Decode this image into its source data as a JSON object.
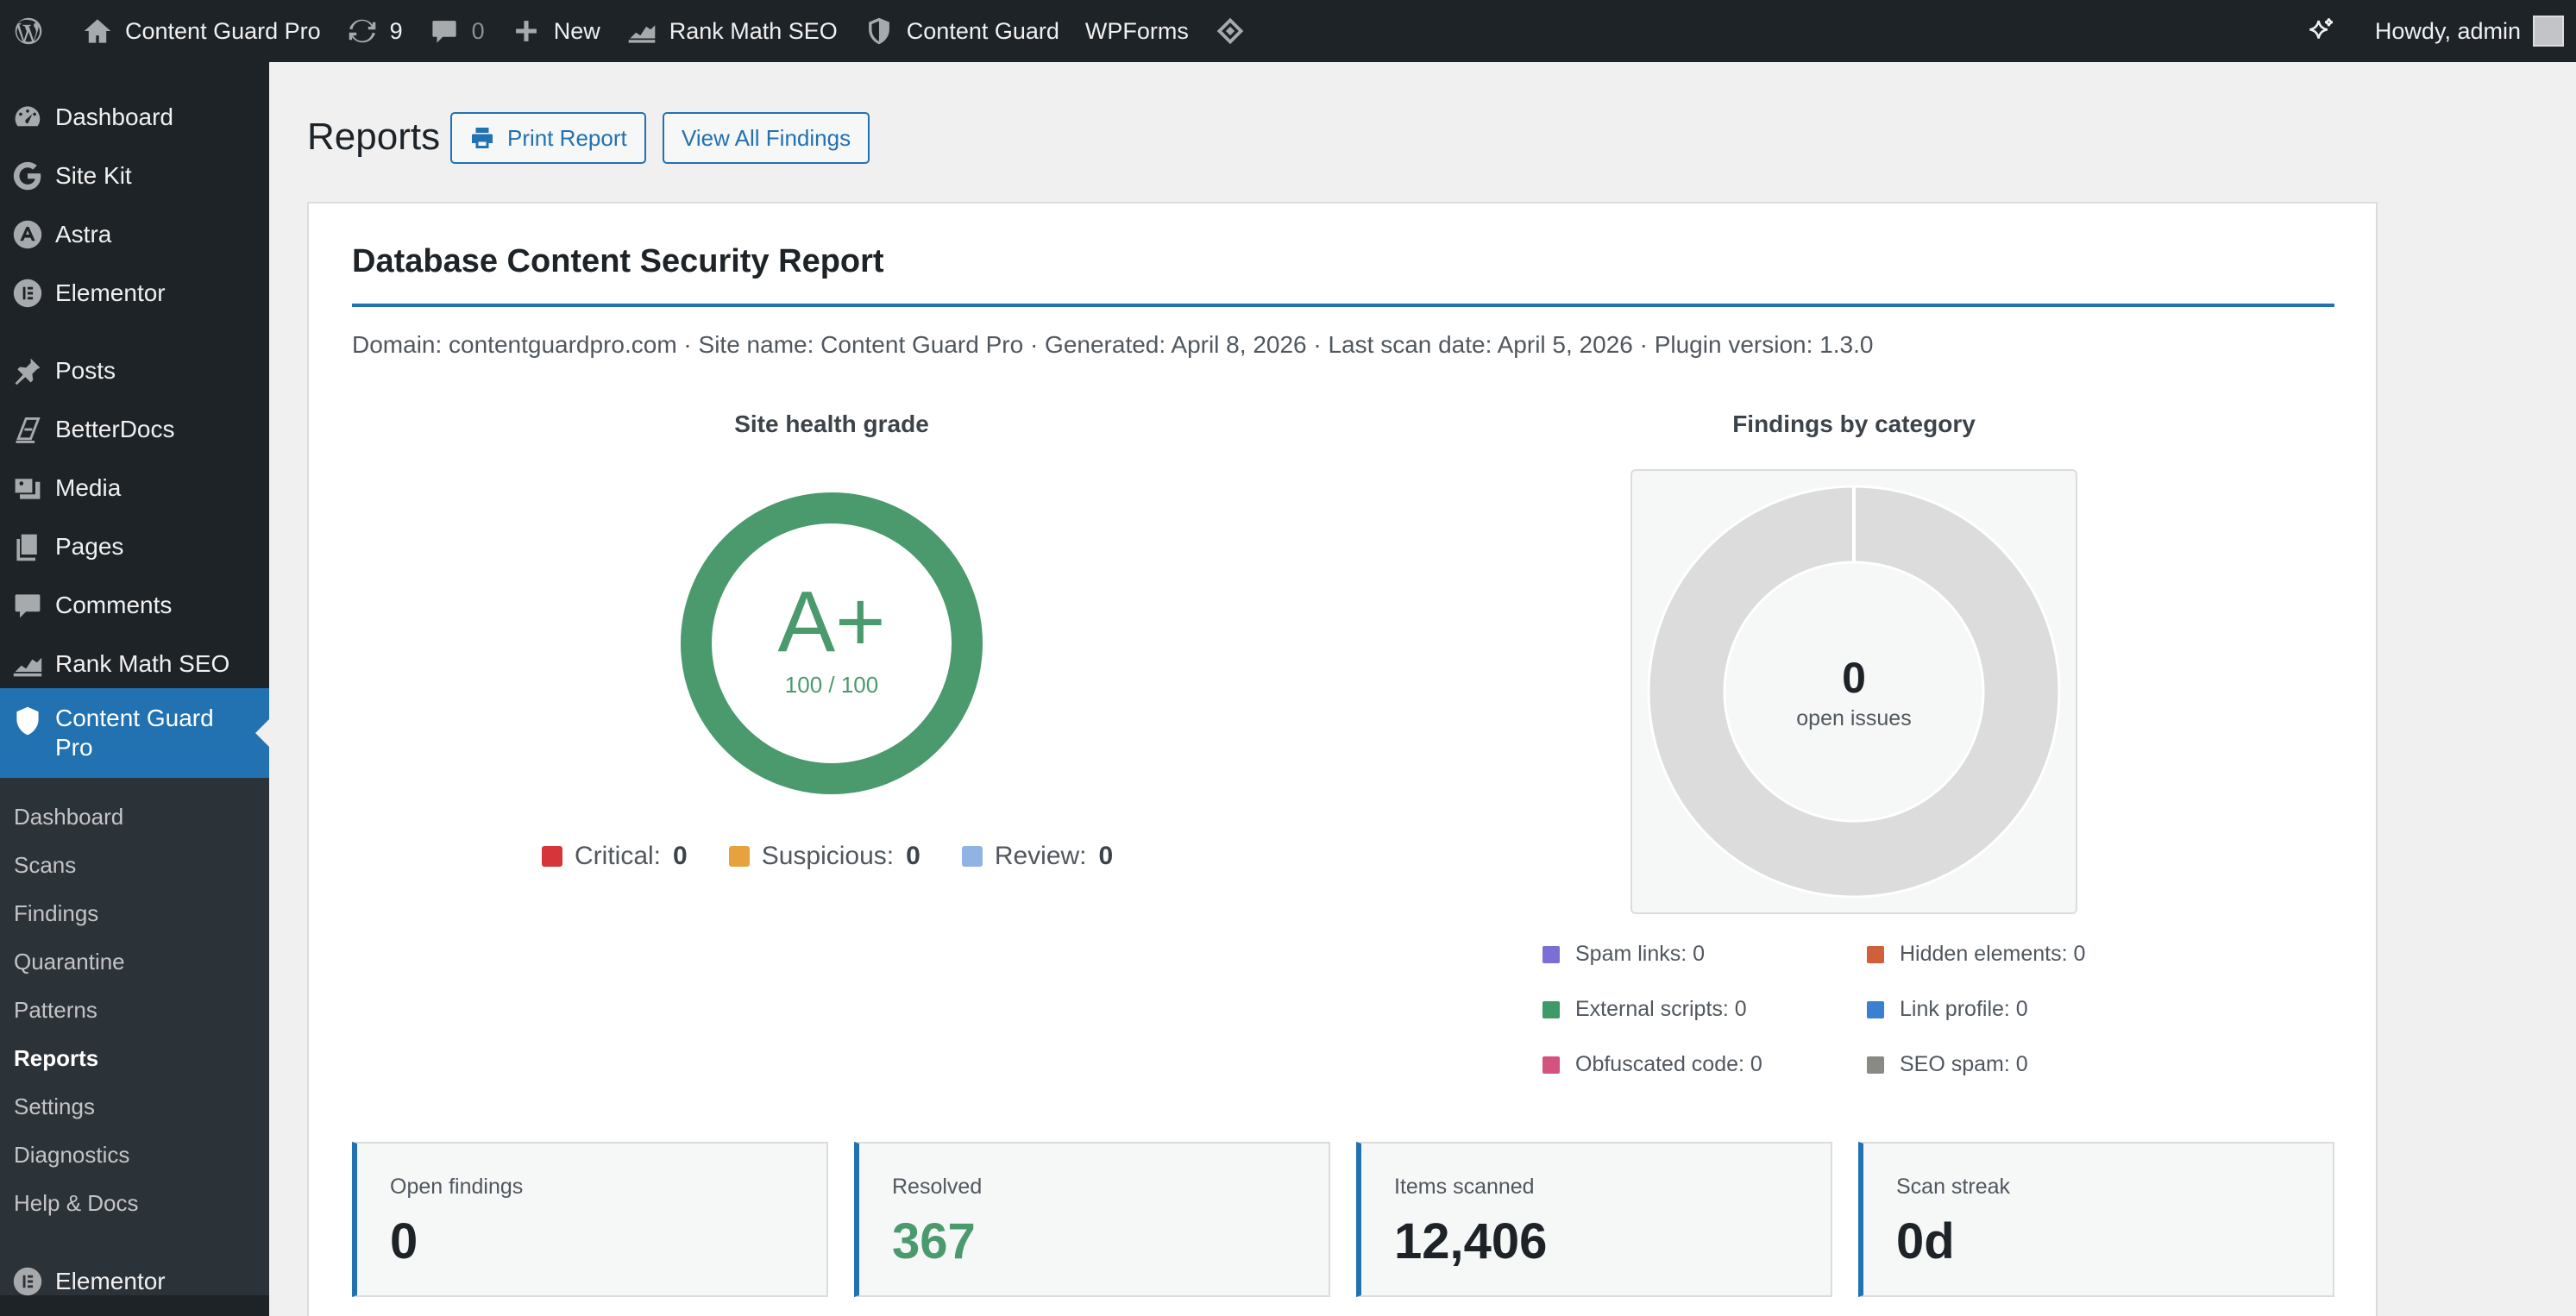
{
  "adminbar": {
    "site_name": "Content Guard Pro",
    "updates_count": "9",
    "comments_count": "0",
    "new_label": "New",
    "rankmath_label": "Rank Math SEO",
    "contentguard_label": "Content Guard",
    "wpforms_label": "WPForms",
    "howdy": "Howdy, admin"
  },
  "sidebar": {
    "items": [
      {
        "label": "Dashboard",
        "icon": "dashboard-icon"
      },
      {
        "label": "Site Kit",
        "icon": "google-icon"
      },
      {
        "label": "Astra",
        "icon": "astra-icon"
      },
      {
        "label": "Elementor",
        "icon": "elementor-icon"
      },
      {
        "label": "Posts",
        "icon": "pin-icon"
      },
      {
        "label": "BetterDocs",
        "icon": "docs-icon"
      },
      {
        "label": "Media",
        "icon": "media-icon"
      },
      {
        "label": "Pages",
        "icon": "pages-icon"
      },
      {
        "label": "Comments",
        "icon": "comment-icon"
      },
      {
        "label": "Rank Math SEO",
        "icon": "rankmath-icon"
      },
      {
        "label": "Content Guard Pro",
        "icon": "shield-icon"
      },
      {
        "label": "Elementor",
        "icon": "elementor-icon"
      }
    ],
    "submenu": [
      "Dashboard",
      "Scans",
      "Findings",
      "Quarantine",
      "Patterns",
      "Reports",
      "Settings",
      "Diagnostics",
      "Help & Docs"
    ],
    "active_submenu": "Reports"
  },
  "page": {
    "title": "Reports",
    "print_button": "Print Report",
    "view_findings_button": "View All Findings"
  },
  "report": {
    "title": "Database Content Security Report",
    "meta": "Domain: contentguardpro.com · Site name: Content Guard Pro · Generated: April 8, 2026 · Last scan date: April 5, 2026 · Plugin version: 1.3.0",
    "health": {
      "heading": "Site health grade",
      "grade": "A+",
      "score": "100 / 100",
      "score_value": 100,
      "color": "#4a9a6e"
    },
    "severity": [
      {
        "label": "Critical:",
        "value": "0",
        "color": "#d63638"
      },
      {
        "label": "Suspicious:",
        "value": "0",
        "color": "#e6a23c"
      },
      {
        "label": "Review:",
        "value": "0",
        "color": "#8fb4e3"
      }
    ],
    "findings": {
      "heading": "Findings by category",
      "total": "0",
      "total_label": "open issues",
      "categories": [
        {
          "label": "Spam links: 0",
          "color": "#7b6fd6"
        },
        {
          "label": "Hidden elements: 0",
          "color": "#d0603a"
        },
        {
          "label": "External scripts: 0",
          "color": "#3f9a68"
        },
        {
          "label": "Link profile: 0",
          "color": "#3a7fd0"
        },
        {
          "label": "Obfuscated code: 0",
          "color": "#d4527e"
        },
        {
          "label": "SEO spam: 0",
          "color": "#8a8a84"
        }
      ]
    },
    "stats": [
      {
        "label": "Open findings",
        "value": "0",
        "color": "#1d2327"
      },
      {
        "label": "Resolved",
        "value": "367",
        "color": "#4a9a6e"
      },
      {
        "label": "Items scanned",
        "value": "12,406",
        "color": "#1d2327"
      },
      {
        "label": "Scan streak",
        "value": "0d",
        "color": "#1d2327"
      }
    ]
  }
}
